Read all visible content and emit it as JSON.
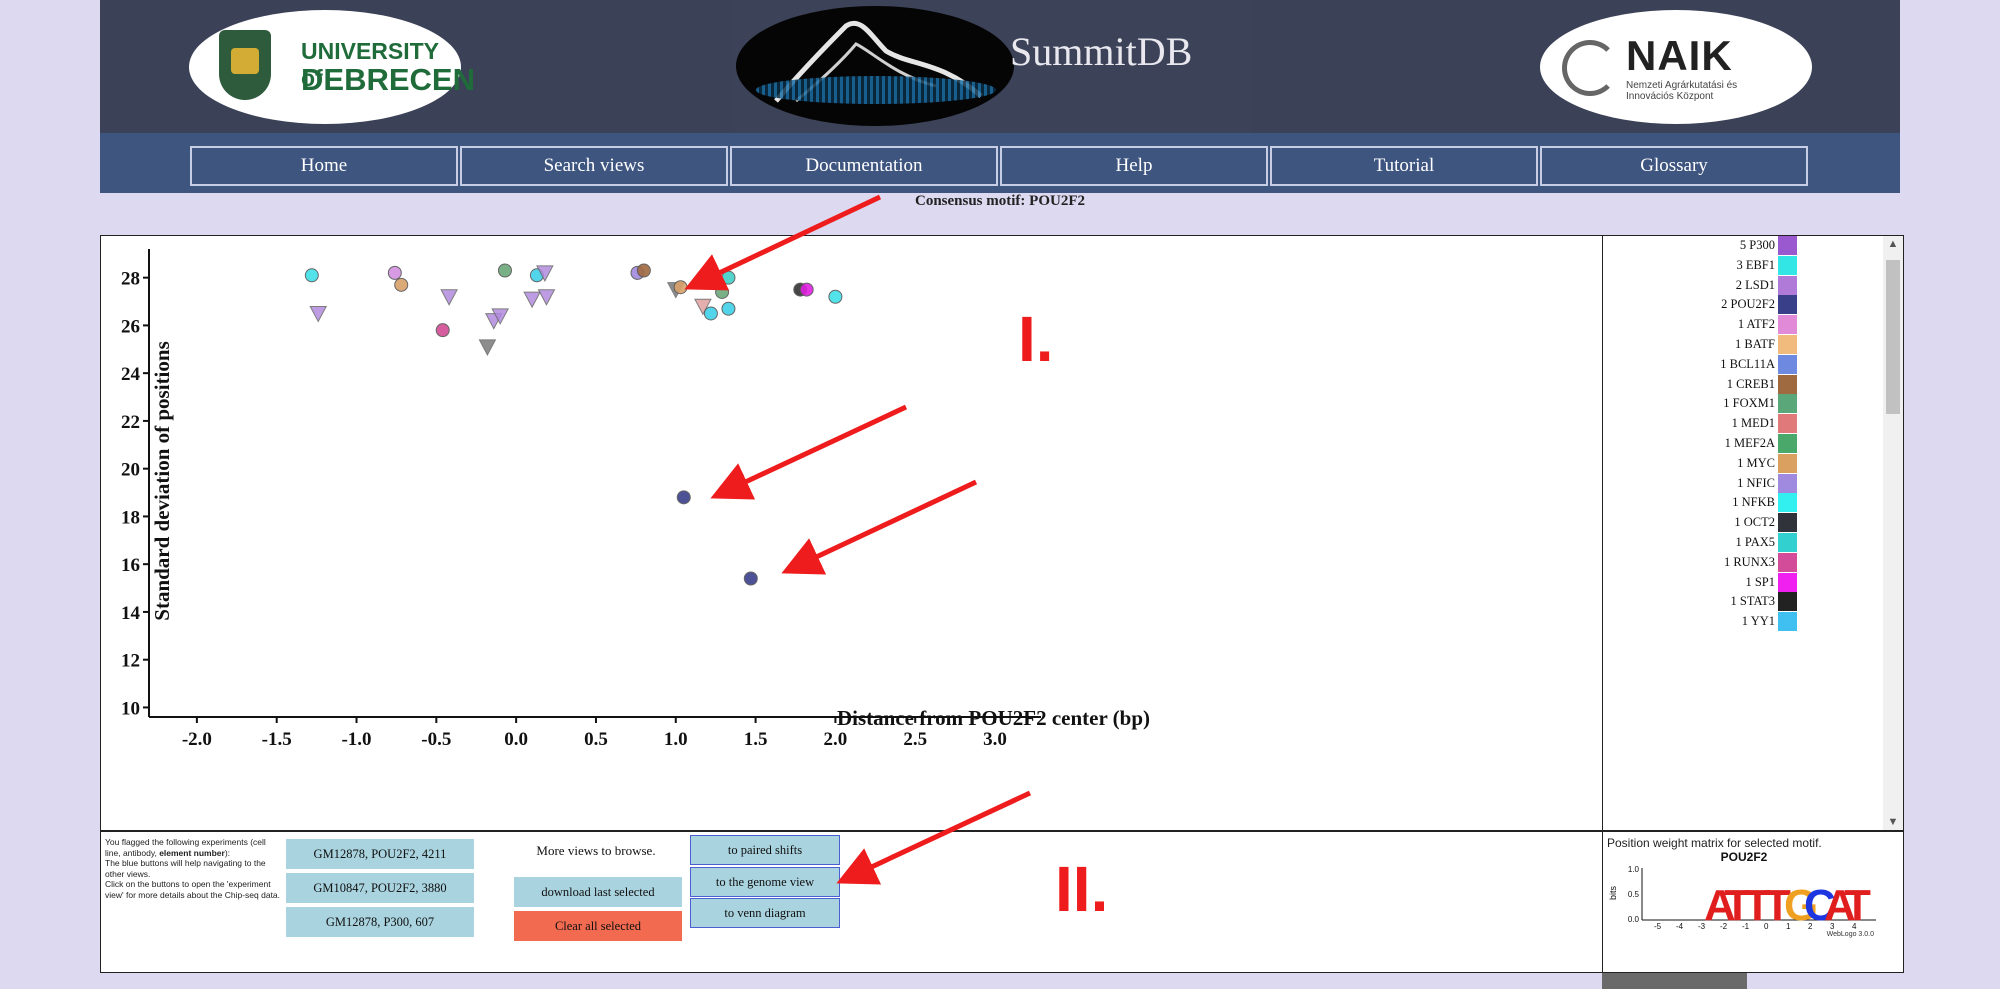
{
  "header": {
    "left_logo": {
      "line1": "UNIVERSITY of",
      "line2": "DEBRECEN"
    },
    "banner_title": "SummitDB",
    "right_logo": {
      "name": "NAIK",
      "subtitle": "Nemzeti Agrárkutatási és Innovációs Központ"
    }
  },
  "nav": {
    "items": [
      "Home",
      "Search views",
      "Documentation",
      "Help",
      "Tutorial",
      "Glossary"
    ]
  },
  "consensus_label": "Consensus motif: POU2F2",
  "chart_data": {
    "type": "scatter",
    "title": "",
    "xlabel": "Distance from POU2F2 center (bp)",
    "ylabel": "Standard deviation of positions",
    "xlim": [
      -2.3,
      3.1
    ],
    "ylim": [
      9.6,
      29.2
    ],
    "xticks": [
      -2.0,
      -1.5,
      -1.0,
      -0.5,
      0.0,
      0.5,
      1.0,
      1.5,
      2.0,
      2.5,
      3.0
    ],
    "yticks": [
      10,
      12,
      14,
      16,
      18,
      20,
      22,
      24,
      26,
      28
    ],
    "points": [
      {
        "x": -1.28,
        "y": 28.1,
        "shape": "circle",
        "color": "#40e0e8"
      },
      {
        "x": -1.24,
        "y": 26.5,
        "shape": "triangle",
        "color": "#b38be0"
      },
      {
        "x": -0.76,
        "y": 28.2,
        "shape": "circle",
        "color": "#d291e0"
      },
      {
        "x": -0.72,
        "y": 27.7,
        "shape": "circle",
        "color": "#d9a06a"
      },
      {
        "x": -0.46,
        "y": 25.8,
        "shape": "circle",
        "color": "#d24c94"
      },
      {
        "x": -0.42,
        "y": 27.2,
        "shape": "triangle",
        "color": "#b38be0"
      },
      {
        "x": -0.18,
        "y": 25.1,
        "shape": "triangle",
        "color": "#7a7a7a"
      },
      {
        "x": -0.14,
        "y": 26.2,
        "shape": "triangle",
        "color": "#b38be0"
      },
      {
        "x": -0.1,
        "y": 26.4,
        "shape": "triangle",
        "color": "#b38be0"
      },
      {
        "x": -0.07,
        "y": 28.3,
        "shape": "circle",
        "color": "#6ba87a"
      },
      {
        "x": 0.1,
        "y": 27.1,
        "shape": "triangle",
        "color": "#b38be0"
      },
      {
        "x": 0.13,
        "y": 28.1,
        "shape": "circle",
        "color": "#40d0e8"
      },
      {
        "x": 0.18,
        "y": 28.2,
        "shape": "triangle",
        "color": "#b38be0"
      },
      {
        "x": 0.19,
        "y": 27.2,
        "shape": "triangle",
        "color": "#b38be0"
      },
      {
        "x": 0.76,
        "y": 28.2,
        "shape": "circle",
        "color": "#a38ae0"
      },
      {
        "x": 0.8,
        "y": 28.3,
        "shape": "circle",
        "color": "#a06a40"
      },
      {
        "x": 1.0,
        "y": 27.5,
        "shape": "triangle",
        "color": "#7a7a7a"
      },
      {
        "x": 1.03,
        "y": 27.6,
        "shape": "circle",
        "color": "#d9a06a"
      },
      {
        "x": 1.17,
        "y": 26.8,
        "shape": "triangle",
        "color": "#e0a0a0"
      },
      {
        "x": 1.22,
        "y": 26.5,
        "shape": "circle",
        "color": "#40d0e8"
      },
      {
        "x": 1.29,
        "y": 27.4,
        "shape": "circle",
        "color": "#6ba87a"
      },
      {
        "x": 1.33,
        "y": 28.0,
        "shape": "circle",
        "color": "#40d0c8"
      },
      {
        "x": 1.33,
        "y": 26.7,
        "shape": "circle",
        "color": "#40d0e8"
      },
      {
        "x": 1.78,
        "y": 27.5,
        "shape": "circle",
        "color": "#333333"
      },
      {
        "x": 1.82,
        "y": 27.5,
        "shape": "circle",
        "color": "#e020e0"
      },
      {
        "x": 2.0,
        "y": 27.2,
        "shape": "circle",
        "color": "#40e0e8"
      },
      {
        "x": 1.05,
        "y": 18.8,
        "shape": "circle",
        "color": "#3a3f8a"
      },
      {
        "x": 1.47,
        "y": 15.4,
        "shape": "circle",
        "color": "#3a3f8a"
      }
    ]
  },
  "annotations": {
    "marker1": "I.",
    "marker2": "II."
  },
  "legend": {
    "items": [
      {
        "label": "5 P300",
        "color": "#9b59d0"
      },
      {
        "label": "3 EBF1",
        "color": "#33e6e6"
      },
      {
        "label": "2 LSD1",
        "color": "#b07ad8"
      },
      {
        "label": "2 POU2F2",
        "color": "#3a3f8a"
      },
      {
        "label": "1 ATF2",
        "color": "#e08ad8"
      },
      {
        "label": "1 BATF",
        "color": "#f2bb7e"
      },
      {
        "label": "1 BCL11A",
        "color": "#6d8ae0"
      },
      {
        "label": "1 CREB1",
        "color": "#a06a40"
      },
      {
        "label": "1 FOXM1",
        "color": "#5aa87a"
      },
      {
        "label": "1 MED1",
        "color": "#e07a7a"
      },
      {
        "label": "1 MEF2A",
        "color": "#4aa86a"
      },
      {
        "label": "1 MYC",
        "color": "#d9a060"
      },
      {
        "label": "1 NFIC",
        "color": "#a08ae0"
      },
      {
        "label": "1 NFKB",
        "color": "#33f0f0"
      },
      {
        "label": "1 OCT2",
        "color": "#30343a"
      },
      {
        "label": "1 PAX5",
        "color": "#33d0d0"
      },
      {
        "label": "1 RUNX3",
        "color": "#d24c9a"
      },
      {
        "label": "1 SP1",
        "color": "#f020f0"
      },
      {
        "label": "1 STAT3",
        "color": "#222222"
      },
      {
        "label": "1 YY1",
        "color": "#40c0f0"
      }
    ]
  },
  "flagged": {
    "text_line1": "You flagged the following experiments (cell line, antibody, ",
    "text_bold": "element number",
    "text_line2": "):",
    "text_line3": "The blue buttons will help navigating to the other views.",
    "text_line4": "Click on the buttons to open the 'experiment view' for more details about the Chip-seq data.",
    "experiments": [
      "GM12878, POU2F2, 4211",
      "GM10847, POU2F2, 3880",
      "GM12878, P300, 607"
    ]
  },
  "actions": {
    "more_views": "More views to browse.",
    "download": "download last selected",
    "clear": "Clear all selected",
    "views": [
      "to paired shifts",
      "to the genome view",
      "to venn diagram"
    ]
  },
  "pwm": {
    "title": "Position weight matrix for selected motif.",
    "logo_title": "POU2F2",
    "ylabel": "bits",
    "yticks": [
      "1.0",
      "0.5",
      "0.0"
    ],
    "positions": [
      "-5",
      "-4",
      "-3",
      "-2",
      "-1",
      "0",
      "1",
      "2",
      "3",
      "4"
    ],
    "sequence": [
      "A",
      "T",
      "T",
      "T",
      "G",
      "C",
      "A",
      "T"
    ],
    "footer": "WebLogo 3.0.0"
  }
}
